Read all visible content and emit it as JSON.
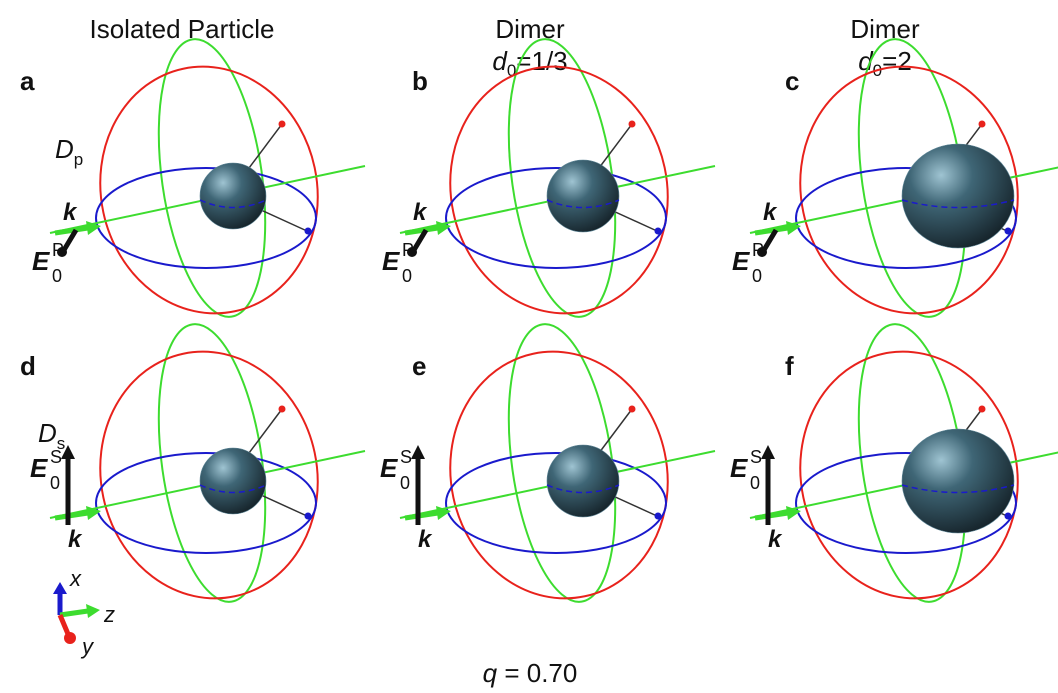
{
  "columns": [
    {
      "title": "Isolated Particle"
    },
    {
      "title": "Dimer",
      "subtitle": {
        "symbol": "d",
        "sub": "0",
        "rest": "=1/3"
      }
    },
    {
      "title": "Dimer",
      "subtitle": {
        "symbol": "d",
        "sub": "0",
        "rest": "=2"
      }
    }
  ],
  "panels": [
    {
      "label": "a"
    },
    {
      "label": "b"
    },
    {
      "label": "c"
    },
    {
      "label": "d"
    },
    {
      "label": "e"
    },
    {
      "label": "f"
    }
  ],
  "rows": [
    {
      "label": {
        "symbol": "D",
        "sub": "p"
      },
      "field": {
        "symbol": "E",
        "sub": "0",
        "sup": "P"
      },
      "wave_vector": "k"
    },
    {
      "label": {
        "symbol": "D",
        "sub": "s"
      },
      "field": {
        "symbol": "E",
        "sub": "0",
        "sup": "S"
      },
      "wave_vector": "k"
    }
  ],
  "axes": {
    "x": "x",
    "y": "y",
    "z": "z"
  },
  "footer": {
    "symbol": "q",
    "rest": " = 0.70"
  }
}
